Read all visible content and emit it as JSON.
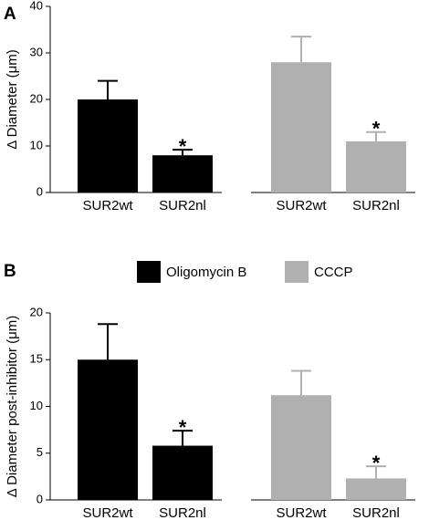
{
  "chart_data": [
    {
      "type": "bar",
      "panel_label": "A",
      "ylabel": "Δ Diameter (μm)",
      "categories": [
        "SUR2wt",
        "SUR2nl"
      ],
      "ylim": [
        0,
        40
      ],
      "yticks": [
        0,
        10,
        20,
        30,
        40
      ],
      "series": [
        {
          "color": "#000000",
          "values": [
            20,
            8
          ],
          "errors": [
            4,
            1.2
          ],
          "markers": [
            null,
            "*"
          ]
        },
        {
          "color": "#b0b0b0",
          "values": [
            28,
            11
          ],
          "errors": [
            5.5,
            2
          ],
          "markers": [
            null,
            "*"
          ]
        }
      ]
    },
    {
      "type": "bar",
      "panel_label": "B",
      "ylabel": "Δ Diameter post-inhibitor (μm)",
      "categories": [
        "SUR2wt",
        "SUR2nl"
      ],
      "ylim": [
        0,
        20
      ],
      "yticks": [
        0,
        5,
        10,
        15,
        20
      ],
      "series": [
        {
          "name": "Oligomycin B",
          "color": "#000000",
          "values": [
            15,
            5.8
          ],
          "errors": [
            3.8,
            1.6
          ],
          "markers": [
            null,
            "*"
          ]
        },
        {
          "name": "CCCP",
          "color": "#b0b0b0",
          "values": [
            11.2,
            2.3
          ],
          "errors": [
            2.6,
            1.3
          ],
          "markers": [
            null,
            "*"
          ]
        }
      ]
    }
  ]
}
